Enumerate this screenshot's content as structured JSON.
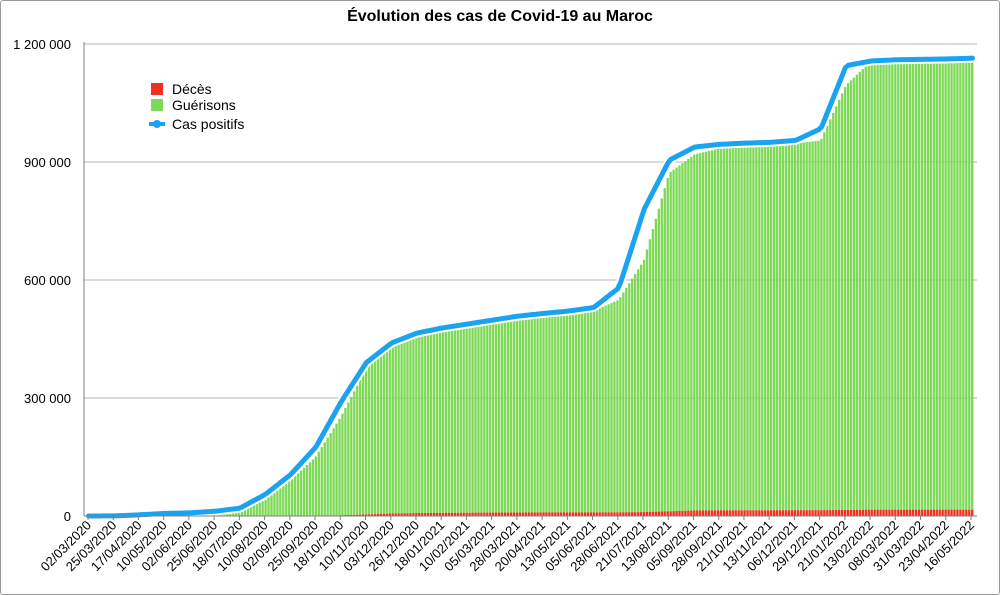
{
  "chart_data": {
    "type": "area",
    "title": "Évolution des cas de Covid-19 au Maroc",
    "xlabel": "",
    "ylabel": "",
    "ylim": [
      0,
      1200000
    ],
    "y_ticks": [
      "0",
      "300 000",
      "600 000",
      "900 000",
      "1 200 000"
    ],
    "y_tick_values": [
      0,
      300000,
      600000,
      900000,
      1200000
    ],
    "x_tick_labels": [
      "02/03/2020",
      "25/03/2020",
      "17/04/2020",
      "10/05/2020",
      "02/06/2020",
      "25/06/2020",
      "18/07/2020",
      "10/08/2020",
      "02/09/2020",
      "25/09/2020",
      "18/10/2020",
      "10/11/2020",
      "03/12/2020",
      "26/12/2020",
      "18/01/2021",
      "10/02/2021",
      "05/03/2021",
      "28/03/2021",
      "20/04/2021",
      "13/05/2021",
      "05/06/2021",
      "28/06/2021",
      "21/07/2021",
      "13/08/2021",
      "05/09/2021",
      "28/09/2021",
      "21/10/2021",
      "13/11/2021",
      "06/12/2021",
      "29/12/2021",
      "21/01/2022",
      "13/02/2022",
      "08/03/2022",
      "31/03/2022",
      "23/04/2022",
      "16/05/2022"
    ],
    "grid": true,
    "legend": "top-left",
    "series": [
      {
        "name": "Décès",
        "style": "bar",
        "color": "#f0301c",
        "values": [
          0,
          0,
          0,
          0,
          0,
          0,
          0,
          0,
          0,
          0,
          2000,
          4000,
          6500,
          7500,
          8000,
          8300,
          8700,
          8800,
          9000,
          9100,
          9200,
          9300,
          10000,
          12000,
          14000,
          14500,
          14600,
          14700,
          14800,
          14850,
          15500,
          16000,
          16100,
          16100,
          16100,
          16100
        ]
      },
      {
        "name": "Guérisons",
        "style": "bar",
        "color": "#7ed957",
        "values": [
          0,
          200,
          1500,
          3500,
          5000,
          8000,
          14000,
          40000,
          90000,
          150000,
          250000,
          370000,
          430000,
          450000,
          465000,
          475000,
          485000,
          495000,
          500000,
          505000,
          512000,
          540000,
          640000,
          860000,
          905000,
          920000,
          925000,
          928000,
          932000,
          940000,
          1080000,
          1140000,
          1145000,
          1145000,
          1146000,
          1147000
        ]
      },
      {
        "name": "Cas positifs",
        "style": "line",
        "color": "#1aa3f0",
        "values": [
          0,
          300,
          3000,
          6500,
          8000,
          12000,
          20000,
          55000,
          105000,
          175000,
          290000,
          390000,
          440000,
          465000,
          478000,
          488000,
          498000,
          508000,
          515000,
          521000,
          530000,
          580000,
          780000,
          905000,
          938000,
          945000,
          948000,
          950000,
          955000,
          985000,
          1145000,
          1157000,
          1160000,
          1161000,
          1162000,
          1164000
        ]
      }
    ]
  }
}
